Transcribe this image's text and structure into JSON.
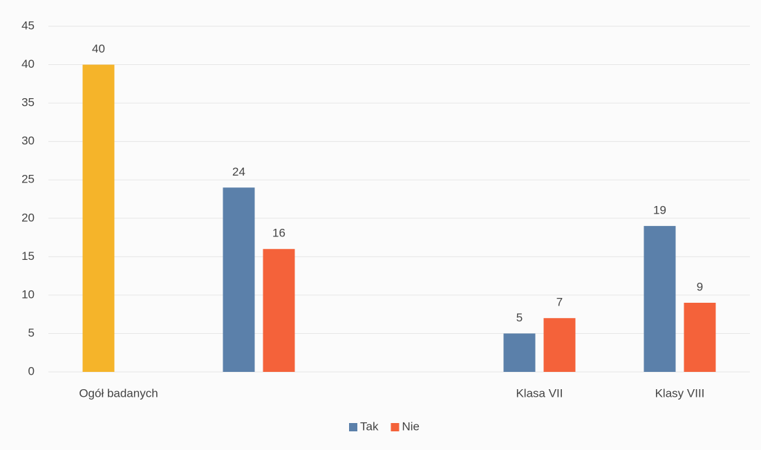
{
  "chart_data": {
    "type": "bar",
    "categories": [
      "Ogół badanych",
      null,
      null,
      "Klasa VII",
      "Klasy VIII"
    ],
    "series": [
      {
        "name": "Tak",
        "color": "#5b80aa",
        "point_colors": [
          "#f5b42a",
          "#5b80aa",
          "#5b80aa",
          "#5b80aa",
          "#5b80aa"
        ],
        "values": [
          40,
          24,
          null,
          5,
          19
        ]
      },
      {
        "name": "Nie",
        "color": "#f4623a",
        "values": [
          null,
          16,
          null,
          7,
          9
        ]
      }
    ],
    "ylim": [
      0,
      45
    ],
    "yticks": [
      0,
      5,
      10,
      15,
      20,
      25,
      30,
      35,
      40,
      45
    ],
    "grid": true,
    "legend": "bottom"
  }
}
